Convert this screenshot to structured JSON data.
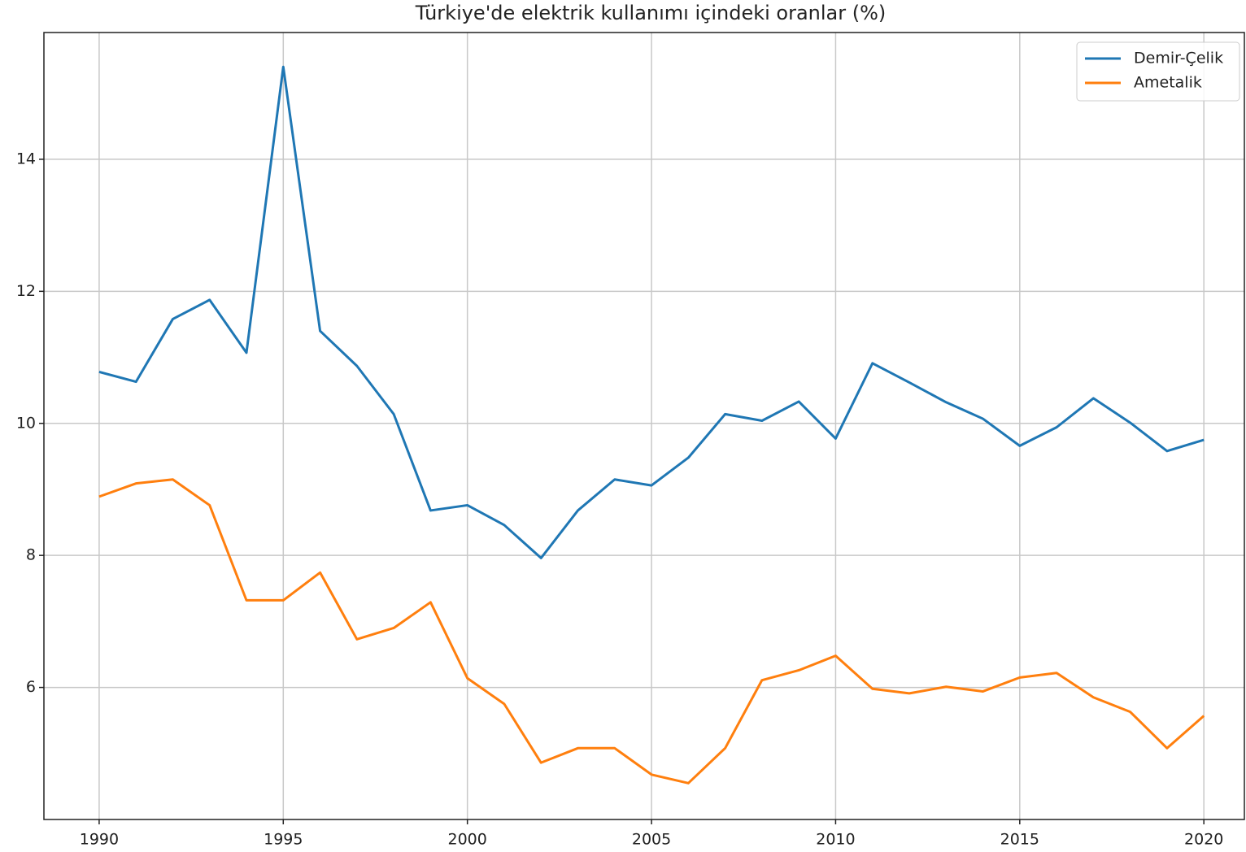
{
  "chart_data": {
    "type": "line",
    "title": "Türkiye'de elektrik kullanımı içindeki oranlar (%)",
    "x": [
      1990,
      1991,
      1992,
      1993,
      1994,
      1995,
      1996,
      1997,
      1998,
      1999,
      2000,
      2001,
      2002,
      2003,
      2004,
      2005,
      2006,
      2007,
      2008,
      2009,
      2010,
      2011,
      2012,
      2013,
      2014,
      2015,
      2016,
      2017,
      2018,
      2019,
      2020
    ],
    "series": [
      {
        "name": "Demir-Çelik",
        "color": "#1f77b4",
        "values": [
          10.78,
          10.63,
          11.58,
          11.87,
          11.07,
          15.4,
          11.4,
          10.87,
          10.14,
          8.68,
          8.76,
          8.46,
          7.96,
          8.68,
          9.15,
          9.06,
          9.48,
          10.14,
          10.04,
          10.33,
          9.77,
          10.91,
          10.62,
          10.32,
          10.07,
          9.66,
          9.94,
          10.38,
          10.01,
          9.58,
          9.75
        ]
      },
      {
        "name": "Ametalik",
        "color": "#ff7f0e",
        "values": [
          8.89,
          9.09,
          9.15,
          8.76,
          7.32,
          7.32,
          7.74,
          6.73,
          6.9,
          7.29,
          6.14,
          5.75,
          4.86,
          5.08,
          5.08,
          4.68,
          4.55,
          5.08,
          6.11,
          6.26,
          6.48,
          5.98,
          5.91,
          6.01,
          5.94,
          6.15,
          6.22,
          5.85,
          5.63,
          5.08,
          5.57
        ]
      }
    ],
    "xlim": [
      1988.5,
      2021.1
    ],
    "xticks": [
      1990,
      1995,
      2000,
      2005,
      2010,
      2015,
      2020
    ],
    "ylim": [
      4.0,
      15.92
    ],
    "yticks": [
      6,
      8,
      10,
      12,
      14
    ],
    "grid": true,
    "legend": "upper right"
  }
}
